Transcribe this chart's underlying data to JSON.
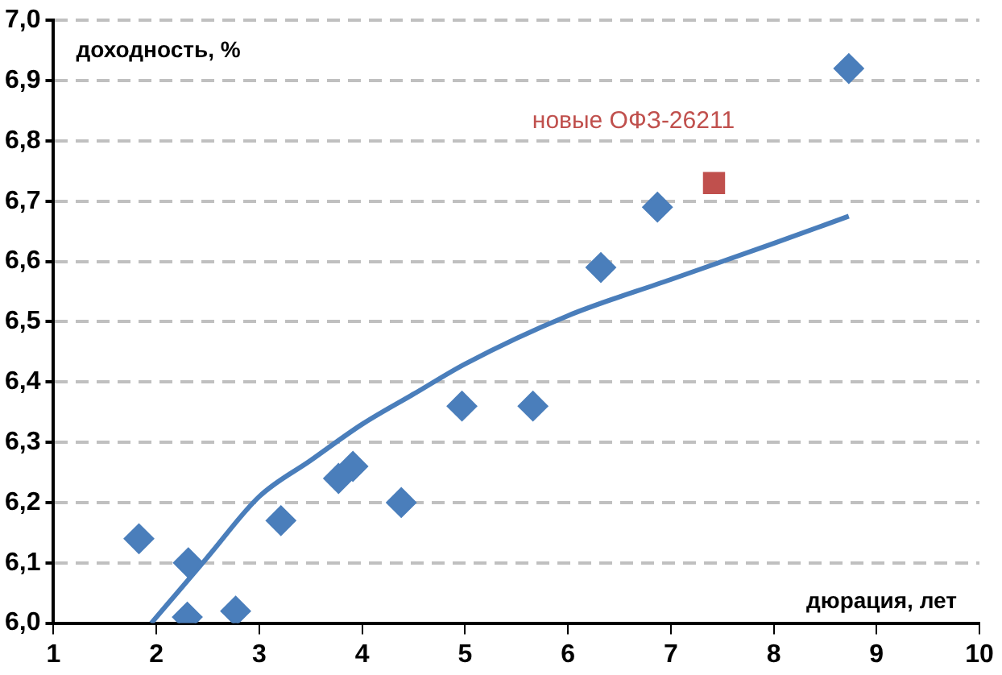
{
  "chart_data": {
    "type": "scatter",
    "xlabel": "дюрация, лет",
    "ylabel": "доходность, %",
    "xlim": [
      1,
      10
    ],
    "xticks": [
      1,
      2,
      3,
      4,
      5,
      6,
      7,
      8,
      9,
      10
    ],
    "ylim": [
      6.0,
      7.0
    ],
    "yticks": [
      {
        "value": 6.0,
        "label": "6,0"
      },
      {
        "value": 6.1,
        "label": "6,1"
      },
      {
        "value": 6.2,
        "label": "6,2"
      },
      {
        "value": 6.3,
        "label": "6,3"
      },
      {
        "value": 6.4,
        "label": "6,4"
      },
      {
        "value": 6.5,
        "label": "6,5"
      },
      {
        "value": 6.6,
        "label": "6,6"
      },
      {
        "value": 6.7,
        "label": "6,7"
      },
      {
        "value": 6.8,
        "label": "6,8"
      },
      {
        "value": 6.9,
        "label": "6,9"
      },
      {
        "value": 7.0,
        "label": "7,0"
      }
    ],
    "grid": "y",
    "legend": false,
    "marker": "diamond",
    "series": [
      {
        "type": "scatter",
        "color": "#4a7ebb",
        "x": [
          1.83,
          2.31,
          2.3,
          2.77,
          3.21,
          3.77,
          3.91,
          4.38,
          4.97,
          5.66,
          6.32,
          6.87,
          8.73
        ],
        "values": [
          6.14,
          6.1,
          6.01,
          6.02,
          6.17,
          6.24,
          6.26,
          6.2,
          6.36,
          6.36,
          6.59,
          6.69,
          6.92
        ]
      },
      {
        "type": "line",
        "color": "#4a7ebb",
        "marker": "none",
        "line_style": "solid",
        "x": [
          1.95,
          2.2,
          2.5,
          3,
          3.5,
          4,
          4.5,
          5,
          6,
          7,
          8,
          8.73
        ],
        "values": [
          6.0,
          6.05,
          6.11,
          6.21,
          6.27,
          6.33,
          6.38,
          6.43,
          6.51,
          6.57,
          6.63,
          6.675
        ]
      },
      {
        "type": "scatter",
        "name": "новые ОФЗ-26211",
        "color": "#c0504d",
        "marker": "square",
        "x": [
          7.42
        ],
        "values": [
          6.73
        ]
      }
    ]
  }
}
